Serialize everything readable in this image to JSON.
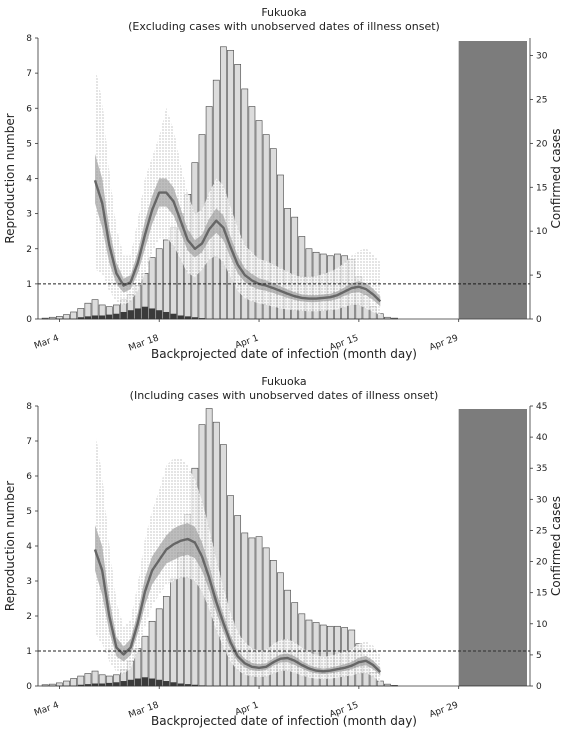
{
  "chart_data": [
    {
      "type": "bar",
      "title": "Fukuoka",
      "subtitle": "(Excluding cases with unobserved dates of illness onset)",
      "xlabel": "Backprojected date of infection (month day)",
      "ylabel": "Reproduction number",
      "y2label": "Confirmed cases",
      "xtick_labels": [
        "Mar 4",
        "Mar 18",
        "Apr 1",
        "Apr 15",
        "Apr 29"
      ],
      "xtick_days": [
        0,
        14,
        28,
        42,
        56
      ],
      "xlim": [
        -3,
        66
      ],
      "ylim": [
        0,
        8
      ],
      "yticks": [
        0,
        1,
        2,
        3,
        4,
        5,
        6,
        7,
        8
      ],
      "y2lim": [
        0,
        32
      ],
      "y2ticks": [
        0,
        5,
        10,
        15,
        20,
        25,
        30
      ],
      "threshold": 1,
      "shade_start_day": 56,
      "start_day": -2,
      "cases": [
        0.1,
        0.2,
        0.3,
        0.5,
        0.8,
        1.2,
        1.8,
        2.2,
        1.6,
        1.4,
        1.6,
        2.2,
        2.8,
        3.8,
        5.2,
        7.0,
        8.0,
        9.0,
        10.4,
        12.0,
        14.2,
        17.8,
        21.0,
        24.2,
        27.2,
        31.0,
        30.6,
        29.0,
        26.2,
        24.2,
        22.6,
        21.0,
        19.4,
        16.4,
        12.6,
        11.6,
        9.4,
        8.0,
        7.6,
        7.4,
        7.2,
        7.4,
        7.2,
        6.8,
        4.8,
        2.8,
        1.4,
        0.6,
        0.2,
        0.1
      ],
      "imported": [
        0,
        0,
        0,
        0,
        0,
        0.2,
        0.3,
        0.4,
        0.4,
        0.5,
        0.6,
        0.8,
        1.0,
        1.2,
        1.4,
        1.2,
        1.0,
        0.8,
        0.6,
        0.4,
        0.3,
        0.2,
        0.1,
        0,
        0
      ],
      "rt_x": [
        5,
        6,
        7,
        8,
        9,
        10,
        11,
        12,
        13,
        14,
        15,
        16,
        17,
        18,
        19,
        20,
        21,
        22,
        23,
        24,
        25,
        26,
        27,
        28,
        29,
        30,
        31,
        32,
        33,
        34,
        35,
        36,
        37,
        38,
        39,
        40,
        41,
        42,
        43,
        44,
        45
      ],
      "rt": [
        3.95,
        3.3,
        2.1,
        1.3,
        0.95,
        1.05,
        1.6,
        2.4,
        3.1,
        3.6,
        3.6,
        3.35,
        2.8,
        2.25,
        2.0,
        2.15,
        2.55,
        2.8,
        2.6,
        2.05,
        1.55,
        1.25,
        1.1,
        1.0,
        0.95,
        0.88,
        0.8,
        0.72,
        0.65,
        0.6,
        0.58,
        0.58,
        0.6,
        0.62,
        0.68,
        0.78,
        0.88,
        0.92,
        0.85,
        0.7,
        0.5
      ],
      "rt_lo": [
        3.3,
        2.6,
        1.6,
        1.0,
        0.75,
        0.85,
        1.3,
        2.0,
        2.7,
        3.2,
        3.2,
        2.95,
        2.45,
        1.95,
        1.75,
        1.9,
        2.25,
        2.45,
        2.25,
        1.75,
        1.3,
        1.05,
        0.92,
        0.84,
        0.8,
        0.74,
        0.67,
        0.6,
        0.54,
        0.5,
        0.48,
        0.48,
        0.5,
        0.52,
        0.57,
        0.66,
        0.74,
        0.76,
        0.68,
        0.54,
        0.36
      ],
      "rt_hi": [
        4.7,
        4.0,
        2.6,
        1.6,
        1.15,
        1.25,
        1.9,
        2.8,
        3.5,
        4.0,
        4.0,
        3.75,
        3.15,
        2.55,
        2.25,
        2.4,
        2.85,
        3.15,
        2.95,
        2.35,
        1.8,
        1.45,
        1.28,
        1.16,
        1.1,
        1.02,
        0.93,
        0.84,
        0.76,
        0.7,
        0.68,
        0.68,
        0.7,
        0.72,
        0.79,
        0.9,
        1.02,
        1.08,
        1.02,
        0.86,
        0.64
      ],
      "rt_lo2": [
        1.4,
        1.3,
        0.8,
        0.5,
        0.4,
        0.5,
        0.8,
        1.3,
        1.9,
        2.3,
        2.3,
        2.1,
        1.7,
        1.3,
        1.2,
        1.4,
        1.7,
        1.8,
        1.6,
        1.2,
        0.8,
        0.6,
        0.5,
        0.45,
        0.4,
        0.35,
        0.3,
        0.27,
        0.25,
        0.23,
        0.22,
        0.22,
        0.23,
        0.25,
        0.28,
        0.35,
        0.4,
        0.4,
        0.3,
        0.2,
        0.1
      ],
      "rt_hi2": [
        7.2,
        6.2,
        4.2,
        2.6,
        1.8,
        1.8,
        2.8,
        4.0,
        4.6,
        5.2,
        6.0,
        5.4,
        4.4,
        3.6,
        3.0,
        3.1,
        3.6,
        4.0,
        3.8,
        3.2,
        2.6,
        2.1,
        1.9,
        1.7,
        1.65,
        1.55,
        1.45,
        1.35,
        1.25,
        1.2,
        1.2,
        1.22,
        1.28,
        1.35,
        1.45,
        1.6,
        1.8,
        1.95,
        2.0,
        1.85,
        1.6
      ]
    },
    {
      "type": "bar",
      "title": "Fukuoka",
      "subtitle": "(Including cases with unobserved dates of illness onset)",
      "xlabel": "Backprojected date of infection (month day)",
      "ylabel": "Reproduction number",
      "y2label": "Confirmed cases",
      "xtick_labels": [
        "Mar 4",
        "Mar 18",
        "Apr 1",
        "Apr 15",
        "Apr 29"
      ],
      "xtick_days": [
        0,
        14,
        28,
        42,
        56
      ],
      "xlim": [
        -3,
        66
      ],
      "ylim": [
        0,
        8
      ],
      "yticks": [
        0,
        1,
        2,
        3,
        4,
        5,
        6,
        7,
        8
      ],
      "y2lim": [
        0,
        45
      ],
      "y2ticks": [
        0,
        5,
        10,
        15,
        20,
        25,
        30,
        35,
        40,
        45
      ],
      "threshold": 1,
      "shade_start_day": 56,
      "start_day": -2,
      "cases": [
        0.2,
        0.3,
        0.5,
        0.8,
        1.2,
        1.6,
        2.0,
        2.4,
        1.8,
        1.6,
        1.8,
        2.6,
        4.0,
        6.0,
        8.0,
        10.4,
        12.4,
        14.4,
        17.2,
        21.4,
        27.6,
        35.0,
        42.0,
        44.6,
        42.4,
        38.8,
        30.6,
        27.4,
        24.6,
        23.8,
        24.0,
        22.2,
        20.2,
        18.2,
        15.4,
        13.4,
        11.6,
        10.6,
        10.2,
        9.8,
        9.6,
        9.6,
        9.4,
        9.0,
        6.8,
        4.2,
        2.2,
        0.8,
        0.3,
        0.1
      ],
      "imported": [
        0,
        0,
        0,
        0,
        0,
        0.2,
        0.3,
        0.4,
        0.4,
        0.5,
        0.6,
        0.8,
        1.0,
        1.2,
        1.4,
        1.2,
        1.0,
        0.8,
        0.6,
        0.4,
        0.3,
        0.2,
        0.1,
        0,
        0
      ],
      "rt_x": [
        5,
        6,
        7,
        8,
        9,
        10,
        11,
        12,
        13,
        14,
        15,
        16,
        17,
        18,
        19,
        20,
        21,
        22,
        23,
        24,
        25,
        26,
        27,
        28,
        29,
        30,
        31,
        32,
        33,
        34,
        35,
        36,
        37,
        38,
        39,
        40,
        41,
        42,
        43,
        44,
        45
      ],
      "rt": [
        3.9,
        3.3,
        2.0,
        1.1,
        0.9,
        1.1,
        1.8,
        2.7,
        3.3,
        3.6,
        3.9,
        4.05,
        4.15,
        4.2,
        4.1,
        3.7,
        3.1,
        2.4,
        1.8,
        1.25,
        0.85,
        0.65,
        0.55,
        0.52,
        0.55,
        0.68,
        0.78,
        0.8,
        0.72,
        0.6,
        0.5,
        0.44,
        0.42,
        0.44,
        0.48,
        0.52,
        0.58,
        0.68,
        0.72,
        0.6,
        0.4
      ],
      "rt_lo": [
        3.3,
        2.6,
        1.55,
        0.85,
        0.7,
        0.88,
        1.5,
        2.3,
        2.9,
        3.2,
        3.5,
        3.6,
        3.7,
        3.75,
        3.65,
        3.3,
        2.75,
        2.1,
        1.55,
        1.05,
        0.7,
        0.53,
        0.45,
        0.43,
        0.46,
        0.58,
        0.67,
        0.68,
        0.6,
        0.5,
        0.41,
        0.36,
        0.34,
        0.36,
        0.4,
        0.43,
        0.48,
        0.56,
        0.59,
        0.48,
        0.3
      ],
      "rt_hi": [
        4.6,
        4.0,
        2.5,
        1.4,
        1.12,
        1.35,
        2.1,
        3.1,
        3.7,
        4.0,
        4.3,
        4.5,
        4.6,
        4.65,
        4.55,
        4.1,
        3.45,
        2.7,
        2.05,
        1.45,
        1.0,
        0.78,
        0.66,
        0.62,
        0.65,
        0.79,
        0.9,
        0.93,
        0.85,
        0.71,
        0.6,
        0.53,
        0.5,
        0.52,
        0.57,
        0.62,
        0.69,
        0.81,
        0.86,
        0.73,
        0.52
      ],
      "rt_lo2": [
        1.5,
        1.2,
        0.7,
        0.4,
        0.35,
        0.5,
        1.0,
        1.7,
        2.3,
        2.6,
        2.9,
        3.0,
        3.1,
        3.1,
        3.0,
        2.7,
        2.2,
        1.6,
        1.1,
        0.7,
        0.45,
        0.33,
        0.27,
        0.25,
        0.27,
        0.36,
        0.43,
        0.44,
        0.38,
        0.3,
        0.24,
        0.21,
        0.2,
        0.21,
        0.24,
        0.27,
        0.3,
        0.36,
        0.37,
        0.27,
        0.1
      ],
      "rt_hi2": [
        7.3,
        6.0,
        4.0,
        2.4,
        1.7,
        1.9,
        2.9,
        4.2,
        5.0,
        5.6,
        6.3,
        6.5,
        6.5,
        6.3,
        5.9,
        5.3,
        4.5,
        3.6,
        2.8,
        2.1,
        1.55,
        1.25,
        1.08,
        1.0,
        1.04,
        1.2,
        1.32,
        1.34,
        1.25,
        1.1,
        0.97,
        0.88,
        0.84,
        0.86,
        0.92,
        0.98,
        1.06,
        1.2,
        1.28,
        1.15,
        0.9
      ]
    }
  ]
}
